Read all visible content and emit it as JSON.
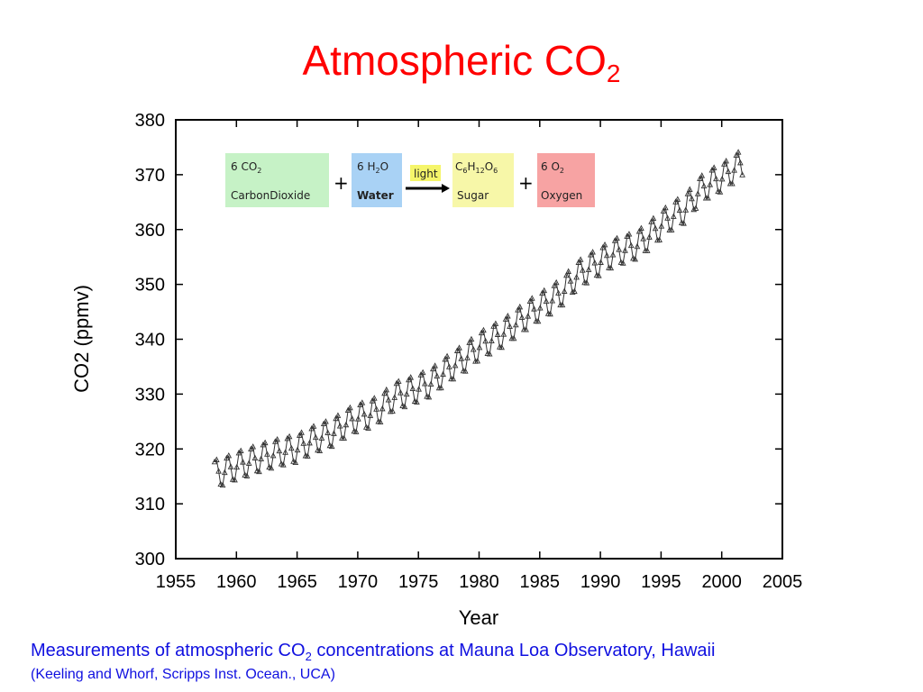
{
  "slide": {
    "title_main": "Atmospheric CO",
    "title_sub": "2",
    "caption_pre": "Measurements of atmospheric CO",
    "caption_sub": "2",
    "caption_post": " concentrations at Mauna Loa Observatory, Hawaii",
    "credit": "(Keeling and Whorf, Scripps Inst. Ocean., UCA)"
  },
  "equation": {
    "reactant1": {
      "formula": "6 CO",
      "sub": "2",
      "name": "CarbonDioxide",
      "color": "#c6f2c6"
    },
    "reactant2": {
      "formula_a": "6 H",
      "sub": "2",
      "formula_b": "O",
      "name": "Water",
      "color": "#a9d2f5"
    },
    "light": {
      "label": "light",
      "color": "#f5f56a"
    },
    "product1": {
      "parts": [
        "C",
        "6",
        "H",
        "12",
        "O",
        "6"
      ],
      "name": "Sugar",
      "color": "#f7f7a8"
    },
    "product2": {
      "formula": "6 O",
      "sub": "2",
      "name": "Oxygen",
      "color": "#f7a3a3"
    },
    "plus": "+"
  },
  "chart_data": {
    "type": "line",
    "title": "Atmospheric CO2",
    "xlabel": "Year",
    "ylabel": "CO2 (ppmv)",
    "xlim": [
      1955,
      2005
    ],
    "ylim": [
      300,
      380
    ],
    "xticks": [
      1955,
      1960,
      1965,
      1970,
      1975,
      1980,
      1985,
      1990,
      1995,
      2000,
      2005
    ],
    "yticks": [
      300,
      310,
      320,
      330,
      340,
      350,
      360,
      370,
      380
    ],
    "grid": false,
    "legend": "none",
    "series": [
      {
        "color": "#333333",
        "marker": "triangle",
        "seasonal_amplitude": 2.7,
        "annual_mean": {
          "x": [
            1958,
            1959,
            1960,
            1961,
            1962,
            1963,
            1964,
            1965,
            1966,
            1967,
            1968,
            1969,
            1970,
            1971,
            1972,
            1973,
            1974,
            1975,
            1976,
            1977,
            1978,
            1979,
            1980,
            1981,
            1982,
            1983,
            1984,
            1985,
            1986,
            1987,
            1988,
            1989,
            1990,
            1991,
            1992,
            1993,
            1994,
            1995,
            1996,
            1997,
            1998,
            1999,
            2000,
            2001
          ],
          "y": [
            315.3,
            315.9,
            316.9,
            317.6,
            318.4,
            319.0,
            319.6,
            320.0,
            321.3,
            322.2,
            323.0,
            324.6,
            325.7,
            326.3,
            327.5,
            329.6,
            330.2,
            331.1,
            332.0,
            333.8,
            335.4,
            336.8,
            338.7,
            339.9,
            341.1,
            342.8,
            344.4,
            345.9,
            347.2,
            348.9,
            351.5,
            352.9,
            354.2,
            355.6,
            356.4,
            357.1,
            358.8,
            360.8,
            362.6,
            363.7,
            366.7,
            368.4,
            369.4,
            371.0
          ]
        }
      }
    ]
  }
}
